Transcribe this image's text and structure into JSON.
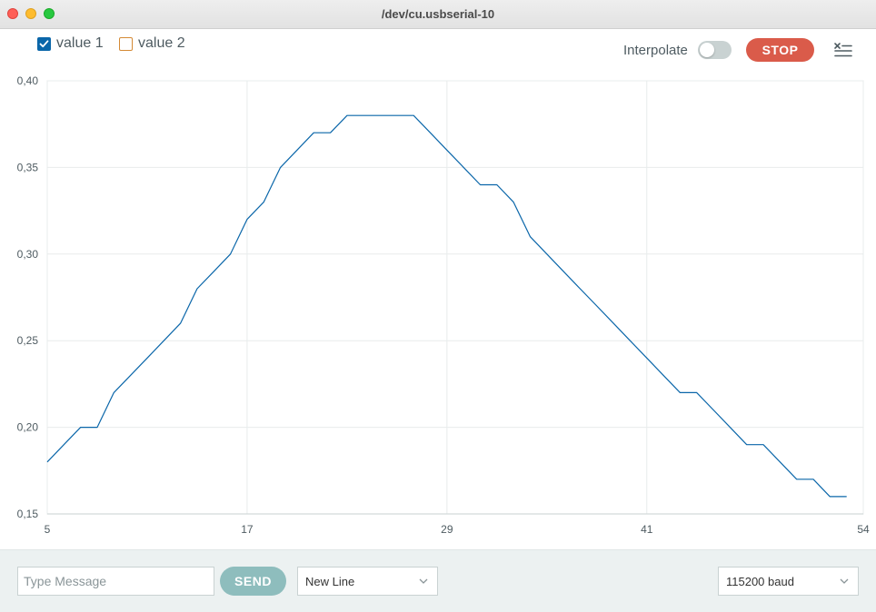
{
  "window": {
    "title": "/dev/cu.usbserial-10"
  },
  "toolbar": {
    "legend": [
      {
        "label": "value 1",
        "checked": true,
        "color": "#0a66a9"
      },
      {
        "label": "value 2",
        "checked": false,
        "color": "#d48a35"
      }
    ],
    "interpolate_label": "Interpolate",
    "interpolate_on": false,
    "stop_label": "STOP",
    "clear_icon": "clear-output-icon"
  },
  "chart_data": {
    "type": "line",
    "x_ticks": [
      "5",
      "17",
      "29",
      "41",
      "54"
    ],
    "y_ticks": [
      "0,40",
      "0,35",
      "0,30",
      "0,25",
      "0,20",
      "0,15"
    ],
    "xlim": [
      5,
      54
    ],
    "ylim": [
      0.15,
      0.4
    ],
    "grid": true,
    "series": [
      {
        "name": "value 1",
        "color": "#0a66a9",
        "x": [
          5,
          6,
          7,
          8,
          9,
          10,
          11,
          12,
          13,
          14,
          15,
          16,
          17,
          18,
          19,
          20,
          21,
          22,
          23,
          24,
          25,
          26,
          27,
          28,
          29,
          30,
          31,
          32,
          33,
          34,
          35,
          36,
          37,
          38,
          39,
          40,
          41,
          42,
          43,
          44,
          45,
          46,
          47,
          48,
          49,
          50,
          51,
          52,
          53
        ],
        "y": [
          0.18,
          0.19,
          0.2,
          0.2,
          0.22,
          0.23,
          0.24,
          0.25,
          0.26,
          0.28,
          0.29,
          0.3,
          0.32,
          0.33,
          0.35,
          0.36,
          0.37,
          0.37,
          0.38,
          0.38,
          0.38,
          0.38,
          0.38,
          0.37,
          0.36,
          0.35,
          0.34,
          0.34,
          0.33,
          0.31,
          0.3,
          0.29,
          0.28,
          0.27,
          0.26,
          0.25,
          0.24,
          0.23,
          0.22,
          0.22,
          0.21,
          0.2,
          0.19,
          0.19,
          0.18,
          0.17,
          0.17,
          0.16,
          0.16
        ]
      }
    ]
  },
  "footer": {
    "message_placeholder": "Type Message",
    "send_label": "SEND",
    "line_ending": "New Line",
    "baud": "115200 baud"
  }
}
